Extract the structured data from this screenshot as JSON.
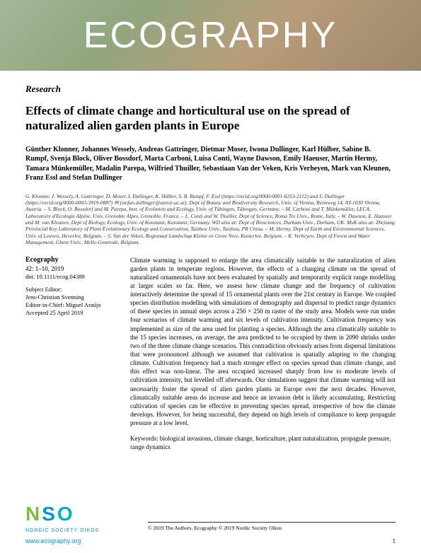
{
  "banner": {
    "title": "ECOGRAPHY",
    "gradient_colors": [
      "#a4b896",
      "#8fa67f",
      "#b89d7a",
      "#9e876a"
    ]
  },
  "research_label": "Research",
  "article_title": "Effects of climate change and horticultural use on the spread of naturalized alien garden plants in Europe",
  "authors": "Günther Klonner, Johannes Wessely, Andreas Gattringer, Dietmar Moser, Iwona Dullinger, Karl Hülber, Sabine B. Rumpf, Svenja Block, Oliver Bossdorf, Marta Carboni, Luisa Conti, Wayne Dawson, Emily Haeuser, Martin Hermy, Tamara Münkemüller, Madalin Parepa, Wilfried Thuiller, Sebastiaan Van der Veken, Kris Verheyen, Mark van Kleunen, Franz Essl and Stefan Dullinger",
  "affiliations": "G. Klonner, J. Wessely, A. Gattringer, D. Moser, I. Dullinger, K. Hülber, S. B. Rumpf, F. Essl (https://orcid.org/0000-0001-8253-2112) and S. Dullinger (https://orcid.org/0000-0003-3919-0887) ✉ (stefan.dullinger@univie.ac.at), Dept of Botany and Biodiversity Research, Univ. of Vienna, Rennweg 14, AT-1030 Vienna, Austria. – S. Block, O. Bossdorf and M. Parepa, Inst. of Evolution and Ecology, Univ. of Tübingen, Tübingen, Germany. – M. Carboni and T. Münkemüller, LECA, Laboratoire d'Ecologie Alpine, Univ. Grenoble Alpes, Grenoble, France. – L. Conti and W. Thuiller, Dept of Science, Roma Tre Univ., Rome, Italy. – W. Dawson, E. Haeuser and M. van Kleunen, Dept of Biology, Ecology, Univ. of Konstanz, Konstanz, Germany. WD also at: Dept of Biosciences, Durham Univ., Durham, UK. MvK also at: Zhejiang Provincial Key Laboratory of Plant Evolutionary Ecology and Conservation, Taizhou Univ., Taizhou, PR China. – M. Hermy, Dept of Earth and Environmental Sciences, Univ. of Leuven, Heverlee, Belgium. – S. Van der Veken, Regionaal Landschap Kleine en Grote Nete, Kasterlee, Belgium. – K. Verheyen, Dept of Forest and Water Management, Ghent Univ., Melle-Gontrode, Belgium.",
  "journal": {
    "name": "Ecography",
    "volume_pages": "42: 1–10, 2019",
    "doi": "doi: 10.1111/ecog.04389"
  },
  "editors": {
    "subject_label": "Subject Editor:",
    "subject_name": "Jens-Christian Svenning",
    "eic_label": "Editor-in-Chief: Miguel Araújo",
    "accepted": "Accepted 25 April 2019"
  },
  "abstract": "Climate warming is supposed to enlarge the area climatically suitable to the naturalization of alien garden plants in temperate regions. However, the effects of a changing climate on the spread of naturalized ornamentals have not been evaluated by spatially and temporarily explicit range modelling at larger scales so far. Here, we assess how climate change and the frequency of cultivation interactively determine the spread of 15 ornamental plants over the 21st century in Europe. We coupled species distribution modelling with simulations of demography and dispersal to predict range dynamics of these species in annual steps across a 250 × 250 m raster of the study area. Models were run under four scenarios of climate warming and six levels of cultivation intensity. Cultivation frequency was implemented as size of the area used for planting a species. Although the area climatically suitable to the 15 species increases, on average, the area predicted to be occupied by them in 2090 shrinks under two of the three climate change scenarios. This contradiction obviously arises from dispersal limitations that were pronounced although we assumed that cultivation is spatially adapting to the changing climate. Cultivation frequency had a much stronger effect on species spread than climate change, and this effect was non-linear. The area occupied increased sharply from low to moderate levels of cultivation intensity, but levelled off afterwards. Our simulations suggest that climate warming will not necessarily foster the spread of alien garden plants in Europe over the next decades. However, climatically suitable areas do increase and hence an invasion debt is likely accumulating. Restricting cultivation of species can be effective in preventing species spread, irrespective of how the climate develops. However, for being successful, they depend on high levels of compliance to keep propagule pressure at a low level.",
  "keywords": "Keywords: biological invasions, climate change, horticulture, plant naturalization, propagule pressure, range dynamics",
  "logo": {
    "letters": "NSO",
    "subtitle": "NORDIC SOCIETY OIKOS",
    "website": "www.ecography.org",
    "colors": {
      "n": "#7fb843",
      "s": "#0097d4",
      "o": "#00b4c5"
    }
  },
  "copyright": "© 2019 The Authors. Ecography © 2019 Nordic Society Oikos",
  "page_number": "1"
}
